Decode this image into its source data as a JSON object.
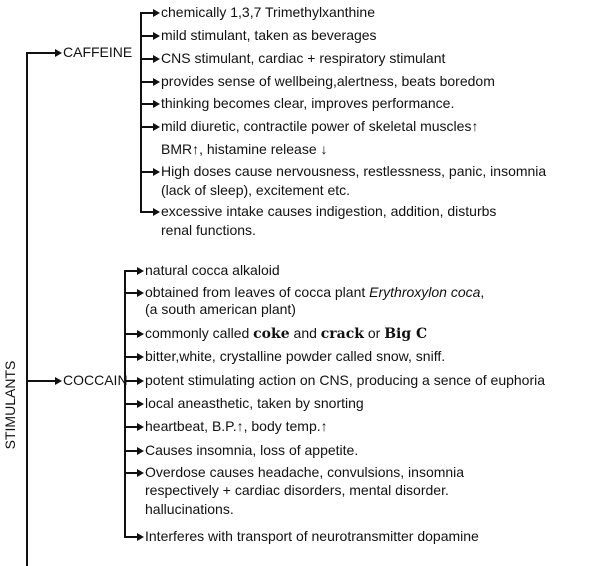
{
  "root": "STIMULANTS",
  "branches": [
    {
      "label": "CAFFEINE",
      "items": [
        {
          "lines": [
            [
              {
                "t": "chemically 1,3,7 Trimethylxanthine"
              }
            ]
          ]
        },
        {
          "lines": [
            [
              {
                "t": "mild stimulant, taken as beverages"
              }
            ]
          ]
        },
        {
          "lines": [
            [
              {
                "t": "CNS stimulant, cardiac + respiratory stimulant"
              }
            ]
          ]
        },
        {
          "lines": [
            [
              {
                "t": "provides sense of wellbeing,alertness, beats boredom"
              }
            ]
          ]
        },
        {
          "lines": [
            [
              {
                "t": "thinking becomes clear, improves performance."
              }
            ]
          ]
        },
        {
          "lines": [
            [
              {
                "t": "mild diuretic, contractile power of skeletal muscles↑"
              }
            ],
            [
              {
                "t": "BMR↑, histamine release ↓"
              }
            ]
          ]
        },
        {
          "lines": [
            [
              {
                "t": "High doses cause nervousness, restlessness, panic, insomnia"
              }
            ],
            [
              {
                "t": "(lack of sleep), excitement etc."
              }
            ]
          ]
        },
        {
          "lines": [
            [
              {
                "t": "excessive intake causes indigestion, addition, disturbs"
              }
            ],
            [
              {
                "t": "renal functions."
              }
            ]
          ]
        }
      ]
    },
    {
      "label": "COCCAIN",
      "items": [
        {
          "lines": [
            [
              {
                "t": "natural cocca alkaloid"
              }
            ]
          ]
        },
        {
          "lines": [
            [
              {
                "t": "obtained from leaves of cocca plant "
              },
              {
                "t": "Erythroxylon coca",
                "s": "i"
              },
              {
                "t": ","
              }
            ],
            [
              {
                "t": "(a south american plant)"
              }
            ]
          ]
        },
        {
          "lines": [
            [
              {
                "t": "commonly called "
              },
              {
                "t": "coke",
                "s": "b"
              },
              {
                "t": " and "
              },
              {
                "t": "crack",
                "s": "b"
              },
              {
                "t": " or "
              },
              {
                "t": "Big C",
                "s": "b"
              }
            ]
          ]
        },
        {
          "lines": [
            [
              {
                "t": "bitter,white, crystalline powder called snow, sniff."
              }
            ]
          ]
        },
        {
          "lines": [
            [
              {
                "t": "potent stimulating action on CNS, producing a sence of euphoria"
              }
            ]
          ]
        },
        {
          "lines": [
            [
              {
                "t": "local aneasthetic, taken by snorting"
              }
            ]
          ]
        },
        {
          "lines": [
            [
              {
                "t": " heartbeat, B.P.↑, body temp.↑"
              }
            ]
          ]
        },
        {
          "lines": [
            [
              {
                "t": "Causes insomnia, loss of appetite."
              }
            ]
          ]
        },
        {
          "lines": [
            [
              {
                "t": "Overdose causes headache, convulsions, insomnia"
              }
            ],
            [
              {
                "t": "respectively + cardiac disorders, mental disorder."
              }
            ],
            [
              {
                "t": "hallucinations."
              }
            ]
          ]
        },
        {
          "lines": [
            [
              {
                "t": "Interferes with transport of neurotransmitter dopamine"
              }
            ]
          ]
        }
      ]
    }
  ]
}
